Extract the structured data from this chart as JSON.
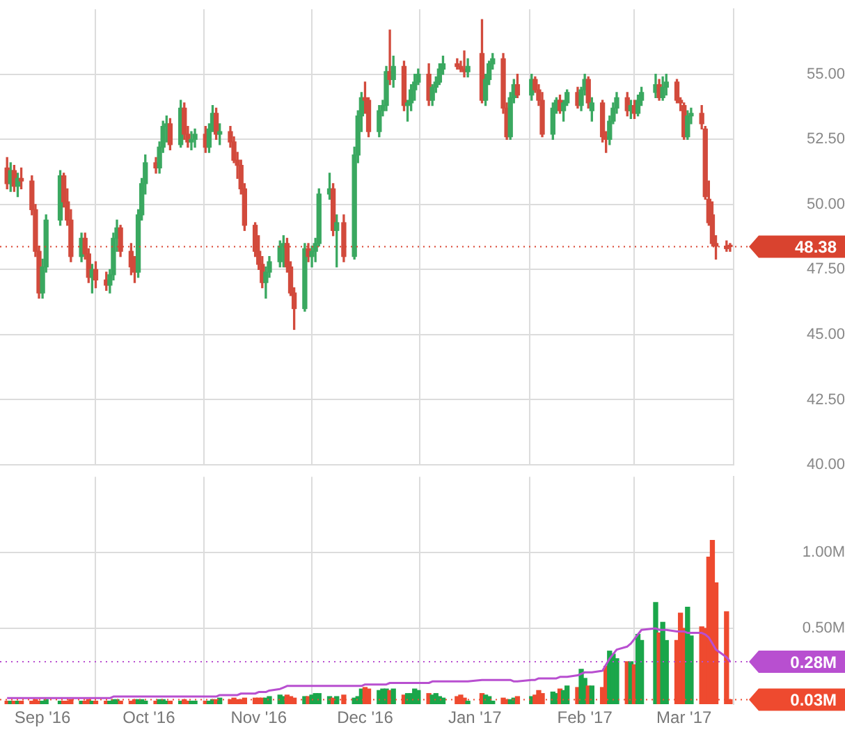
{
  "chart_data": [
    {
      "type": "candlestick",
      "x": [
        "2016-08-22",
        "2016-08-23",
        "2016-08-24",
        "2016-08-25",
        "2016-08-26",
        "2016-08-29",
        "2016-08-30",
        "2016-08-31",
        "2016-09-01",
        "2016-09-02",
        "2016-09-06",
        "2016-09-07",
        "2016-09-08",
        "2016-09-09",
        "2016-09-12",
        "2016-09-13",
        "2016-09-14",
        "2016-09-15",
        "2016-09-16",
        "2016-09-19",
        "2016-09-20",
        "2016-09-21",
        "2016-09-22",
        "2016-09-23",
        "2016-09-26",
        "2016-09-27",
        "2016-09-28",
        "2016-09-29",
        "2016-09-30",
        "2016-10-03",
        "2016-10-04",
        "2016-10-05",
        "2016-10-06",
        "2016-10-07",
        "2016-10-10",
        "2016-10-11",
        "2016-10-12",
        "2016-10-13",
        "2016-10-14",
        "2016-10-17",
        "2016-10-18",
        "2016-10-19",
        "2016-10-20",
        "2016-10-21",
        "2016-10-24",
        "2016-10-25",
        "2016-10-26",
        "2016-10-27",
        "2016-10-28",
        "2016-10-31",
        "2016-11-01",
        "2016-11-02",
        "2016-11-03",
        "2016-11-04",
        "2016-11-07",
        "2016-11-08",
        "2016-11-09",
        "2016-11-10",
        "2016-11-11",
        "2016-11-14",
        "2016-11-15",
        "2016-11-16",
        "2016-11-17",
        "2016-11-18",
        "2016-11-21",
        "2016-11-22",
        "2016-11-23",
        "2016-11-25",
        "2016-11-28",
        "2016-11-29",
        "2016-11-30",
        "2016-12-01",
        "2016-12-02",
        "2016-12-05",
        "2016-12-06",
        "2016-12-07",
        "2016-12-08",
        "2016-12-09",
        "2016-12-12",
        "2016-12-13",
        "2016-12-14",
        "2016-12-15",
        "2016-12-16",
        "2016-12-19",
        "2016-12-20",
        "2016-12-21",
        "2016-12-22",
        "2016-12-23",
        "2016-12-27",
        "2016-12-28",
        "2016-12-29",
        "2016-12-30",
        "2017-01-03",
        "2017-01-04",
        "2017-01-05",
        "2017-01-06",
        "2017-01-09",
        "2017-01-10",
        "2017-01-11",
        "2017-01-12",
        "2017-01-13",
        "2017-01-17",
        "2017-01-18",
        "2017-01-19",
        "2017-01-20",
        "2017-01-23",
        "2017-01-24",
        "2017-01-25",
        "2017-01-26",
        "2017-01-27",
        "2017-01-30",
        "2017-01-31",
        "2017-02-01",
        "2017-02-02",
        "2017-02-03",
        "2017-02-06",
        "2017-02-07",
        "2017-02-08",
        "2017-02-09",
        "2017-02-10",
        "2017-02-13",
        "2017-02-14",
        "2017-02-15",
        "2017-02-16",
        "2017-02-17",
        "2017-02-21",
        "2017-02-22",
        "2017-02-23",
        "2017-02-24",
        "2017-02-27",
        "2017-02-28",
        "2017-03-01",
        "2017-03-02",
        "2017-03-03",
        "2017-03-06",
        "2017-03-07",
        "2017-03-08",
        "2017-03-09",
        "2017-03-10",
        "2017-03-13",
        "2017-03-14"
      ],
      "ohlc": [
        [
          51.4,
          51.8,
          50.6,
          50.8
        ],
        [
          50.8,
          51.6,
          50.5,
          51.3
        ],
        [
          51.3,
          51.5,
          50.5,
          50.7
        ],
        [
          50.7,
          51.2,
          50.3,
          51.0
        ],
        [
          51.0,
          51.4,
          50.6,
          50.9
        ],
        [
          50.9,
          51.1,
          49.6,
          49.8
        ],
        [
          49.8,
          50.0,
          48.0,
          48.2
        ],
        [
          48.2,
          48.4,
          46.4,
          46.6
        ],
        [
          46.6,
          47.9,
          46.4,
          47.6
        ],
        [
          47.6,
          49.6,
          47.4,
          49.4
        ],
        [
          49.4,
          51.3,
          49.2,
          51.1
        ],
        [
          51.1,
          51.2,
          49.9,
          50.1
        ],
        [
          50.1,
          50.6,
          49.2,
          49.4
        ],
        [
          49.4,
          49.8,
          47.8,
          48.0
        ],
        [
          48.0,
          48.9,
          47.8,
          48.7
        ],
        [
          48.7,
          48.9,
          47.9,
          48.1
        ],
        [
          48.1,
          48.3,
          47.0,
          47.2
        ],
        [
          47.2,
          47.7,
          46.6,
          47.5
        ],
        [
          47.5,
          47.8,
          46.8,
          47.1
        ],
        [
          47.1,
          47.4,
          46.7,
          46.9
        ],
        [
          46.9,
          47.5,
          46.6,
          47.3
        ],
        [
          47.3,
          48.9,
          47.1,
          48.7
        ],
        [
          48.7,
          49.4,
          48.2,
          49.1
        ],
        [
          49.1,
          49.2,
          48.0,
          48.2
        ],
        [
          48.2,
          48.5,
          47.3,
          47.6
        ],
        [
          47.6,
          48.0,
          47.0,
          47.4
        ],
        [
          47.4,
          49.8,
          47.2,
          49.6
        ],
        [
          49.6,
          51.0,
          49.4,
          50.8
        ],
        [
          50.8,
          51.9,
          50.4,
          51.6
        ],
        [
          51.6,
          51.8,
          51.2,
          51.4
        ],
        [
          51.4,
          52.4,
          51.2,
          52.2
        ],
        [
          52.2,
          53.2,
          52.0,
          53.0
        ],
        [
          53.0,
          53.4,
          52.4,
          53.1
        ],
        [
          53.1,
          53.3,
          52.1,
          52.3
        ],
        [
          52.3,
          54.0,
          52.2,
          53.7
        ],
        [
          53.7,
          53.9,
          52.5,
          52.7
        ],
        [
          52.7,
          53.0,
          52.2,
          52.4
        ],
        [
          52.4,
          52.8,
          52.1,
          52.5
        ],
        [
          52.5,
          52.9,
          52.2,
          52.7
        ],
        [
          52.7,
          53.0,
          52.0,
          52.2
        ],
        [
          52.2,
          53.1,
          52.0,
          52.9
        ],
        [
          52.9,
          53.8,
          52.8,
          53.5
        ],
        [
          53.5,
          53.7,
          52.5,
          52.7
        ],
        [
          52.7,
          53.1,
          52.3,
          52.8
        ],
        [
          52.8,
          53.0,
          52.2,
          52.4
        ],
        [
          52.4,
          52.6,
          51.6,
          51.7
        ],
        [
          51.7,
          52.0,
          51.0,
          51.5
        ],
        [
          51.5,
          51.7,
          50.4,
          50.6
        ],
        [
          50.6,
          50.8,
          49.0,
          49.2
        ],
        [
          49.2,
          49.3,
          48.0,
          48.2
        ],
        [
          48.2,
          48.8,
          47.5,
          47.7
        ],
        [
          47.7,
          48.0,
          46.8,
          47.0
        ],
        [
          47.0,
          47.6,
          46.4,
          47.4
        ],
        [
          47.4,
          48.0,
          47.2,
          47.8
        ],
        [
          47.8,
          48.6,
          47.6,
          48.4
        ],
        [
          48.4,
          48.8,
          47.6,
          48.5
        ],
        [
          48.5,
          48.7,
          47.4,
          47.6
        ],
        [
          47.6,
          47.8,
          46.5,
          46.6
        ],
        [
          46.6,
          46.8,
          45.2,
          46.0
        ],
        [
          46.0,
          48.5,
          45.9,
          48.3
        ],
        [
          48.3,
          48.5,
          47.8,
          48.0
        ],
        [
          48.0,
          48.4,
          47.6,
          48.2
        ],
        [
          48.2,
          48.7,
          47.8,
          48.5
        ],
        [
          48.5,
          50.6,
          48.4,
          50.4
        ],
        [
          50.4,
          51.2,
          50.2,
          50.6
        ],
        [
          50.6,
          50.8,
          48.8,
          49.0
        ],
        [
          49.0,
          49.6,
          47.6,
          49.3
        ],
        [
          49.3,
          49.6,
          47.8,
          48.0
        ],
        [
          48.0,
          52.2,
          47.9,
          51.9
        ],
        [
          51.9,
          53.6,
          51.6,
          53.4
        ],
        [
          53.4,
          54.3,
          52.8,
          54.1
        ],
        [
          54.1,
          54.7,
          53.5,
          54.0
        ],
        [
          54.0,
          54.1,
          52.6,
          52.8
        ],
        [
          52.8,
          53.8,
          52.6,
          53.6
        ],
        [
          53.6,
          54.0,
          53.4,
          53.8
        ],
        [
          53.8,
          55.3,
          53.6,
          55.1
        ],
        [
          55.1,
          56.7,
          54.6,
          54.8
        ],
        [
          54.8,
          55.7,
          54.5,
          55.3
        ],
        [
          55.3,
          55.5,
          53.6,
          53.8
        ],
        [
          53.8,
          54.0,
          53.2,
          53.9
        ],
        [
          53.9,
          54.6,
          53.6,
          54.4
        ],
        [
          54.4,
          55.0,
          54.0,
          54.7
        ],
        [
          54.7,
          55.2,
          54.6,
          55.0
        ],
        [
          55.0,
          55.4,
          53.8,
          54.0
        ],
        [
          54.0,
          54.6,
          53.8,
          54.5
        ],
        [
          54.5,
          54.9,
          54.3,
          54.7
        ],
        [
          54.7,
          55.4,
          54.6,
          55.2
        ],
        [
          55.2,
          55.7,
          55.0,
          55.4
        ],
        [
          55.4,
          55.6,
          55.2,
          55.3
        ],
        [
          55.3,
          55.5,
          55.1,
          55.2
        ],
        [
          55.2,
          55.9,
          54.9,
          55.1
        ],
        [
          55.1,
          55.6,
          54.9,
          55.3
        ],
        [
          55.8,
          57.1,
          53.9,
          54.0
        ],
        [
          54.0,
          55.0,
          53.8,
          54.8
        ],
        [
          54.8,
          55.5,
          54.6,
          55.4
        ],
        [
          55.4,
          55.8,
          55.2,
          55.6
        ],
        [
          55.6,
          55.8,
          53.5,
          53.7
        ],
        [
          53.7,
          53.9,
          52.5,
          52.6
        ],
        [
          52.6,
          54.3,
          52.5,
          54.1
        ],
        [
          54.1,
          54.8,
          53.9,
          54.6
        ],
        [
          54.6,
          55.0,
          54.1,
          54.2
        ],
        [
          54.2,
          55.0,
          54.0,
          54.8
        ],
        [
          54.8,
          54.9,
          54.3,
          54.4
        ],
        [
          54.4,
          54.6,
          53.8,
          54.0
        ],
        [
          54.0,
          54.3,
          52.6,
          52.7
        ],
        [
          52.7,
          53.9,
          52.5,
          53.7
        ],
        [
          53.7,
          54.1,
          53.5,
          54.0
        ],
        [
          54.0,
          54.2,
          53.5,
          53.6
        ],
        [
          53.6,
          54.0,
          53.2,
          53.9
        ],
        [
          53.9,
          54.4,
          53.8,
          54.3
        ],
        [
          54.3,
          54.5,
          53.7,
          53.8
        ],
        [
          53.8,
          54.5,
          53.6,
          54.4
        ],
        [
          54.4,
          55.0,
          54.2,
          54.8
        ],
        [
          54.8,
          54.9,
          53.7,
          53.9
        ],
        [
          53.6,
          54.1,
          53.2,
          53.9
        ],
        [
          53.9,
          54.0,
          52.4,
          52.6
        ],
        [
          52.6,
          52.8,
          52.0,
          52.5
        ],
        [
          52.5,
          53.4,
          52.3,
          53.2
        ],
        [
          53.2,
          53.9,
          53.1,
          53.7
        ],
        [
          53.7,
          54.3,
          53.5,
          54.1
        ],
        [
          54.1,
          54.3,
          53.4,
          53.6
        ],
        [
          53.6,
          54.0,
          53.3,
          53.8
        ],
        [
          53.8,
          54.0,
          53.3,
          53.5
        ],
        [
          53.5,
          54.2,
          53.4,
          54.0
        ],
        [
          54.0,
          54.5,
          53.8,
          54.3
        ],
        [
          54.3,
          55.0,
          54.1,
          54.6
        ],
        [
          54.6,
          54.8,
          54.0,
          54.1
        ],
        [
          54.1,
          54.9,
          54.0,
          54.5
        ],
        [
          54.5,
          55.0,
          54.2,
          54.7
        ],
        [
          54.7,
          54.8,
          53.9,
          54.0
        ],
        [
          54.0,
          54.1,
          53.6,
          53.9
        ],
        [
          53.8,
          53.9,
          52.5,
          52.6
        ],
        [
          52.6,
          53.6,
          52.5,
          53.4
        ],
        [
          53.4,
          53.7,
          53.1,
          53.5
        ],
        [
          53.5,
          53.8,
          52.9,
          53.1
        ],
        [
          52.9,
          53.0,
          50.2,
          50.3
        ],
        [
          50.2,
          50.9,
          49.2,
          49.3
        ],
        [
          49.6,
          50.1,
          48.4,
          48.5
        ],
        [
          48.5,
          48.8,
          47.9,
          48.4
        ],
        [
          48.4,
          48.6,
          48.2,
          48.3
        ],
        [
          48.4,
          48.5,
          48.2,
          48.38
        ]
      ],
      "colors": [
        "#d24a3c",
        "#3aa860",
        "#d24a3c",
        "#3aa860",
        "#d24a3c",
        "#d24a3c",
        "#d24a3c",
        "#d24a3c",
        "#3aa860",
        "#3aa860",
        "#3aa860",
        "#d24a3c",
        "#d24a3c",
        "#d24a3c",
        "#3aa860",
        "#d24a3c",
        "#d24a3c",
        "#3aa860",
        "#d24a3c",
        "#d24a3c",
        "#3aa860",
        "#3aa860",
        "#3aa860",
        "#d24a3c",
        "#d24a3c",
        "#d24a3c",
        "#3aa860",
        "#3aa860",
        "#3aa860",
        "#d24a3c",
        "#3aa860",
        "#3aa860",
        "#3aa860",
        "#d24a3c",
        "#3aa860",
        "#d24a3c",
        "#d24a3c",
        "#3aa860",
        "#3aa860",
        "#d24a3c",
        "#3aa860",
        "#3aa860",
        "#d24a3c",
        "#3aa860",
        "#d24a3c",
        "#d24a3c",
        "#d24a3c",
        "#d24a3c",
        "#d24a3c",
        "#d24a3c",
        "#d24a3c",
        "#d24a3c",
        "#3aa860",
        "#3aa860",
        "#3aa860",
        "#3aa860",
        "#d24a3c",
        "#d24a3c",
        "#d24a3c",
        "#3aa860",
        "#d24a3c",
        "#3aa860",
        "#3aa860",
        "#3aa860",
        "#3aa860",
        "#d24a3c",
        "#3aa860",
        "#d24a3c",
        "#3aa860",
        "#3aa860",
        "#3aa860",
        "#d24a3c",
        "#d24a3c",
        "#3aa860",
        "#3aa860",
        "#3aa860",
        "#d24a3c",
        "#3aa860",
        "#d24a3c",
        "#3aa860",
        "#3aa860",
        "#3aa860",
        "#3aa860",
        "#d24a3c",
        "#3aa860",
        "#3aa860",
        "#3aa860",
        "#3aa860",
        "#d24a3c",
        "#d24a3c",
        "#d24a3c",
        "#3aa860",
        "#d24a3c",
        "#3aa860",
        "#3aa860",
        "#3aa860",
        "#d24a3c",
        "#d24a3c",
        "#3aa860",
        "#3aa860",
        "#d24a3c",
        "#3aa860",
        "#d24a3c",
        "#d24a3c",
        "#d24a3c",
        "#3aa860",
        "#3aa860",
        "#d24a3c",
        "#3aa860",
        "#3aa860",
        "#d24a3c",
        "#3aa860",
        "#3aa860",
        "#d24a3c",
        "#3aa860",
        "#d24a3c",
        "#d24a3c",
        "#3aa860",
        "#3aa860",
        "#3aa860",
        "#d24a3c",
        "#3aa860",
        "#d24a3c",
        "#3aa860",
        "#3aa860",
        "#3aa860",
        "#d24a3c",
        "#3aa860",
        "#3aa860",
        "#d24a3c",
        "#d24a3c",
        "#d24a3c",
        "#3aa860",
        "#3aa860",
        "#d24a3c",
        "#d24a3c",
        "#d24a3c",
        "#d24a3c",
        "#d24a3c",
        "#d24a3c",
        "#d24a3c"
      ],
      "xlim": [
        "2016-08-20",
        "2017-03-15"
      ],
      "xticks": [
        {
          "value": "2016-09-01",
          "label": null
        },
        {
          "value": "2016-10-01",
          "label": null
        },
        {
          "value": "2016-11-01",
          "label": null
        },
        {
          "value": "2016-12-01",
          "label": null
        },
        {
          "value": "2017-01-01",
          "label": null
        },
        {
          "value": "2017-02-01",
          "label": null
        },
        {
          "value": "2017-03-01",
          "label": null
        }
      ],
      "ylim": [
        40,
        57.5
      ],
      "yticks": [
        {
          "value": 40,
          "label": "40.00"
        },
        {
          "value": 42.5,
          "label": "42.50"
        },
        {
          "value": 45,
          "label": "45.00"
        },
        {
          "value": 47.5,
          "label": "47.50"
        },
        {
          "value": 50,
          "label": "50.00"
        },
        {
          "value": 52.5,
          "label": "52.50"
        },
        {
          "value": 55,
          "label": "55.00"
        }
      ],
      "grid": true,
      "tick_labels": "y",
      "ref_lines": [
        {
          "axis": "y",
          "value": 48.38,
          "label": "48.38",
          "color": "#d9432f",
          "line_style": "dotted"
        }
      ]
    },
    {
      "type": "bar",
      "x": [
        "2016-08-22",
        "2016-08-23",
        "2016-08-24",
        "2016-08-25",
        "2016-08-26",
        "2016-08-29",
        "2016-08-30",
        "2016-08-31",
        "2016-09-01",
        "2016-09-02",
        "2016-09-06",
        "2016-09-07",
        "2016-09-08",
        "2016-09-09",
        "2016-09-12",
        "2016-09-13",
        "2016-09-14",
        "2016-09-15",
        "2016-09-16",
        "2016-09-19",
        "2016-09-20",
        "2016-09-21",
        "2016-09-22",
        "2016-09-23",
        "2016-09-26",
        "2016-09-27",
        "2016-09-28",
        "2016-09-29",
        "2016-09-30",
        "2016-10-03",
        "2016-10-04",
        "2016-10-05",
        "2016-10-06",
        "2016-10-07",
        "2016-10-10",
        "2016-10-11",
        "2016-10-12",
        "2016-10-13",
        "2016-10-14",
        "2016-10-17",
        "2016-10-18",
        "2016-10-19",
        "2016-10-20",
        "2016-10-21",
        "2016-10-24",
        "2016-10-25",
        "2016-10-26",
        "2016-10-27",
        "2016-10-28",
        "2016-10-31",
        "2016-11-01",
        "2016-11-02",
        "2016-11-03",
        "2016-11-04",
        "2016-11-07",
        "2016-11-08",
        "2016-11-09",
        "2016-11-10",
        "2016-11-11",
        "2016-11-14",
        "2016-11-15",
        "2016-11-16",
        "2016-11-17",
        "2016-11-18",
        "2016-11-21",
        "2016-11-22",
        "2016-11-23",
        "2016-11-25",
        "2016-11-28",
        "2016-11-29",
        "2016-11-30",
        "2016-12-01",
        "2016-12-02",
        "2016-12-05",
        "2016-12-06",
        "2016-12-07",
        "2016-12-08",
        "2016-12-09",
        "2016-12-12",
        "2016-12-13",
        "2016-12-14",
        "2016-12-15",
        "2016-12-16",
        "2016-12-19",
        "2016-12-20",
        "2016-12-21",
        "2016-12-22",
        "2016-12-23",
        "2016-12-27",
        "2016-12-28",
        "2016-12-29",
        "2016-12-30",
        "2017-01-03",
        "2017-01-04",
        "2017-01-05",
        "2017-01-06",
        "2017-01-09",
        "2017-01-10",
        "2017-01-11",
        "2017-01-12",
        "2017-01-13",
        "2017-01-17",
        "2017-01-18",
        "2017-01-19",
        "2017-01-20",
        "2017-01-23",
        "2017-01-24",
        "2017-01-25",
        "2017-01-26",
        "2017-01-27",
        "2017-01-30",
        "2017-01-31",
        "2017-02-01",
        "2017-02-02",
        "2017-02-03",
        "2017-02-06",
        "2017-02-07",
        "2017-02-08",
        "2017-02-09",
        "2017-02-10",
        "2017-02-13",
        "2017-02-14",
        "2017-02-15",
        "2017-02-16",
        "2017-02-17",
        "2017-02-21",
        "2017-02-22",
        "2017-02-23",
        "2017-02-24",
        "2017-02-27",
        "2017-02-28",
        "2017-03-01",
        "2017-03-02",
        "2017-03-03",
        "2017-03-06",
        "2017-03-07",
        "2017-03-08",
        "2017-03-09",
        "2017-03-10",
        "2017-03-13",
        "2017-03-14"
      ],
      "series": [
        {
          "type": "bar",
          "values": [
            0.02,
            0.02,
            0.02,
            0.02,
            0.02,
            0.02,
            0.03,
            0.02,
            0.02,
            0.03,
            0.02,
            0.02,
            0.02,
            0.03,
            0.02,
            0.02,
            0.03,
            0.02,
            0.02,
            0.02,
            0.02,
            0.03,
            0.03,
            0.02,
            0.02,
            0.03,
            0.03,
            0.03,
            0.02,
            0.02,
            0.03,
            0.03,
            0.02,
            0.02,
            0.02,
            0.03,
            0.02,
            0.02,
            0.02,
            0.02,
            0.02,
            0.03,
            0.03,
            0.04,
            0.03,
            0.04,
            0.03,
            0.03,
            0.04,
            0.04,
            0.04,
            0.04,
            0.04,
            0.05,
            0.06,
            0.05,
            0.06,
            0.05,
            0.04,
            0.05,
            0.05,
            0.06,
            0.07,
            0.07,
            0.05,
            0.04,
            0.05,
            0.06,
            0.04,
            0.05,
            0.1,
            0.11,
            0.1,
            0.09,
            0.1,
            0.1,
            0.09,
            0.1,
            0.06,
            0.07,
            0.07,
            0.1,
            0.09,
            0.07,
            0.06,
            0.07,
            0.05,
            0.04,
            0.05,
            0.06,
            0.04,
            0.02,
            0.07,
            0.06,
            0.05,
            0.02,
            0.04,
            0.03,
            0.03,
            0.04,
            0.05,
            0.05,
            0.06,
            0.09,
            0.07,
            0.08,
            0.07,
            0.1,
            0.09,
            0.12,
            0.11,
            0.23,
            0.17,
            0.12,
            0.12,
            0.11,
            0.25,
            0.35,
            0.33,
            0.3,
            0.28,
            0.28,
            0.26,
            0.46,
            0.42,
            0.67,
            0.47,
            0.54,
            0.42,
            0.42,
            0.6,
            0.5,
            0.64,
            0.45,
            0.51,
            0.5,
            0.97,
            1.08,
            0.8,
            0.61,
            0.03
          ],
          "colors": [
            "#ee4a2f",
            "#1aa64a",
            "#ee4a2f",
            "#1aa64a",
            "#ee4a2f",
            "#ee4a2f",
            "#ee4a2f",
            "#ee4a2f",
            "#1aa64a",
            "#1aa64a",
            "#1aa64a",
            "#ee4a2f",
            "#ee4a2f",
            "#ee4a2f",
            "#1aa64a",
            "#ee4a2f",
            "#ee4a2f",
            "#1aa64a",
            "#ee4a2f",
            "#ee4a2f",
            "#1aa64a",
            "#1aa64a",
            "#1aa64a",
            "#ee4a2f",
            "#ee4a2f",
            "#ee4a2f",
            "#1aa64a",
            "#1aa64a",
            "#1aa64a",
            "#ee4a2f",
            "#1aa64a",
            "#1aa64a",
            "#1aa64a",
            "#ee4a2f",
            "#1aa64a",
            "#ee4a2f",
            "#ee4a2f",
            "#1aa64a",
            "#1aa64a",
            "#ee4a2f",
            "#1aa64a",
            "#1aa64a",
            "#ee4a2f",
            "#1aa64a",
            "#ee4a2f",
            "#ee4a2f",
            "#ee4a2f",
            "#ee4a2f",
            "#ee4a2f",
            "#ee4a2f",
            "#ee4a2f",
            "#ee4a2f",
            "#1aa64a",
            "#1aa64a",
            "#1aa64a",
            "#1aa64a",
            "#ee4a2f",
            "#ee4a2f",
            "#ee4a2f",
            "#1aa64a",
            "#ee4a2f",
            "#1aa64a",
            "#1aa64a",
            "#1aa64a",
            "#1aa64a",
            "#ee4a2f",
            "#1aa64a",
            "#ee4a2f",
            "#1aa64a",
            "#1aa64a",
            "#1aa64a",
            "#ee4a2f",
            "#ee4a2f",
            "#1aa64a",
            "#1aa64a",
            "#1aa64a",
            "#ee4a2f",
            "#1aa64a",
            "#ee4a2f",
            "#1aa64a",
            "#1aa64a",
            "#1aa64a",
            "#1aa64a",
            "#ee4a2f",
            "#1aa64a",
            "#1aa64a",
            "#1aa64a",
            "#1aa64a",
            "#ee4a2f",
            "#ee4a2f",
            "#ee4a2f",
            "#1aa64a",
            "#ee4a2f",
            "#1aa64a",
            "#1aa64a",
            "#1aa64a",
            "#ee4a2f",
            "#ee4a2f",
            "#1aa64a",
            "#1aa64a",
            "#ee4a2f",
            "#1aa64a",
            "#ee4a2f",
            "#ee4a2f",
            "#ee4a2f",
            "#1aa64a",
            "#1aa64a",
            "#ee4a2f",
            "#1aa64a",
            "#1aa64a",
            "#ee4a2f",
            "#1aa64a",
            "#1aa64a",
            "#ee4a2f",
            "#1aa64a",
            "#ee4a2f",
            "#ee4a2f",
            "#1aa64a",
            "#1aa64a",
            "#1aa64a",
            "#ee4a2f",
            "#1aa64a",
            "#ee4a2f",
            "#1aa64a",
            "#1aa64a",
            "#1aa64a",
            "#ee4a2f",
            "#1aa64a",
            "#1aa64a",
            "#ee4a2f",
            "#ee4a2f",
            "#ee4a2f",
            "#1aa64a",
            "#1aa64a",
            "#ee4a2f",
            "#ee4a2f",
            "#ee4a2f",
            "#ee4a2f",
            "#ee4a2f",
            "#ee4a2f",
            "#ee4a2f"
          ]
        },
        {
          "type": "line",
          "color": "#b84fd0",
          "values": [
            0.04,
            0.04,
            0.04,
            0.04,
            0.04,
            0.04,
            0.04,
            0.04,
            0.04,
            0.04,
            0.04,
            0.04,
            0.04,
            0.04,
            0.04,
            0.04,
            0.04,
            0.04,
            0.04,
            0.04,
            0.04,
            0.05,
            0.05,
            0.05,
            0.05,
            0.05,
            0.05,
            0.05,
            0.05,
            0.05,
            0.05,
            0.05,
            0.05,
            0.05,
            0.05,
            0.05,
            0.05,
            0.05,
            0.05,
            0.05,
            0.05,
            0.05,
            0.05,
            0.06,
            0.06,
            0.06,
            0.06,
            0.07,
            0.07,
            0.07,
            0.08,
            0.08,
            0.08,
            0.09,
            0.1,
            0.11,
            0.12,
            0.12,
            0.12,
            0.12,
            0.12,
            0.12,
            0.12,
            0.12,
            0.12,
            0.12,
            0.12,
            0.12,
            0.12,
            0.12,
            0.12,
            0.13,
            0.13,
            0.13,
            0.13,
            0.13,
            0.14,
            0.14,
            0.14,
            0.14,
            0.14,
            0.14,
            0.14,
            0.14,
            0.15,
            0.15,
            0.15,
            0.15,
            0.15,
            0.15,
            0.15,
            0.15,
            0.16,
            0.16,
            0.16,
            0.16,
            0.16,
            0.16,
            0.16,
            0.15,
            0.15,
            0.16,
            0.16,
            0.17,
            0.17,
            0.17,
            0.17,
            0.18,
            0.18,
            0.18,
            0.19,
            0.2,
            0.21,
            0.21,
            0.21,
            0.22,
            0.26,
            0.3,
            0.33,
            0.36,
            0.38,
            0.4,
            0.43,
            0.46,
            0.49,
            0.5,
            0.49,
            0.49,
            0.49,
            0.48,
            0.48,
            0.48,
            0.47,
            0.47,
            0.47,
            0.46,
            0.44,
            0.4,
            0.36,
            0.31,
            0.28
          ]
        }
      ],
      "xlim": [
        "2016-08-20",
        "2017-03-15"
      ],
      "xticks": [
        {
          "value": "2016-09-01",
          "label": "Sep '16"
        },
        {
          "value": "2016-10-01",
          "label": "Oct '16"
        },
        {
          "value": "2016-11-01",
          "label": "Nov '16"
        },
        {
          "value": "2016-12-01",
          "label": "Dec '16"
        },
        {
          "value": "2017-01-01",
          "label": "Jan '17"
        },
        {
          "value": "2017-02-01",
          "label": "Feb '17"
        },
        {
          "value": "2017-03-01",
          "label": "Mar '17"
        }
      ],
      "ylim": [
        0,
        1.5
      ],
      "yticks": [
        {
          "value": 0.5,
          "label": "0.50M"
        },
        {
          "value": 1,
          "label": "1.00M"
        }
      ],
      "grid": true,
      "marker": "none",
      "ref_lines": [
        {
          "axis": "y",
          "value": 0.28,
          "label": "0.28M",
          "color": "#b84fd0",
          "line_style": "dotted"
        },
        {
          "axis": "y",
          "value": 0.03,
          "label": "0.03M",
          "color": "#ee4a2f",
          "line_style": "dotted"
        }
      ]
    }
  ]
}
